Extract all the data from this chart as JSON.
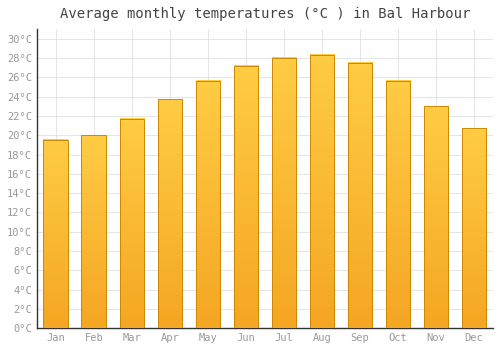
{
  "title": "Average monthly temperatures (°C ) in Bal Harbour",
  "months": [
    "Jan",
    "Feb",
    "Mar",
    "Apr",
    "May",
    "Jun",
    "Jul",
    "Aug",
    "Sep",
    "Oct",
    "Nov",
    "Dec"
  ],
  "values": [
    19.5,
    20.0,
    21.7,
    23.7,
    25.6,
    27.2,
    28.0,
    28.3,
    27.5,
    25.6,
    23.0,
    20.7
  ],
  "bar_color_top": "#FFCC44",
  "bar_color_bottom": "#F5A623",
  "bar_color_edge": "#CC8800",
  "ylim": [
    0,
    31
  ],
  "yticks": [
    0,
    2,
    4,
    6,
    8,
    10,
    12,
    14,
    16,
    18,
    20,
    22,
    24,
    26,
    28,
    30
  ],
  "ytick_labels": [
    "0°C",
    "2°C",
    "4°C",
    "6°C",
    "8°C",
    "10°C",
    "12°C",
    "14°C",
    "16°C",
    "18°C",
    "20°C",
    "22°C",
    "24°C",
    "26°C",
    "28°C",
    "30°C"
  ],
  "background_color": "#ffffff",
  "grid_color": "#e0e0e0",
  "title_fontsize": 10,
  "tick_fontsize": 7.5,
  "bar_width": 0.65,
  "font_color": "#999999"
}
